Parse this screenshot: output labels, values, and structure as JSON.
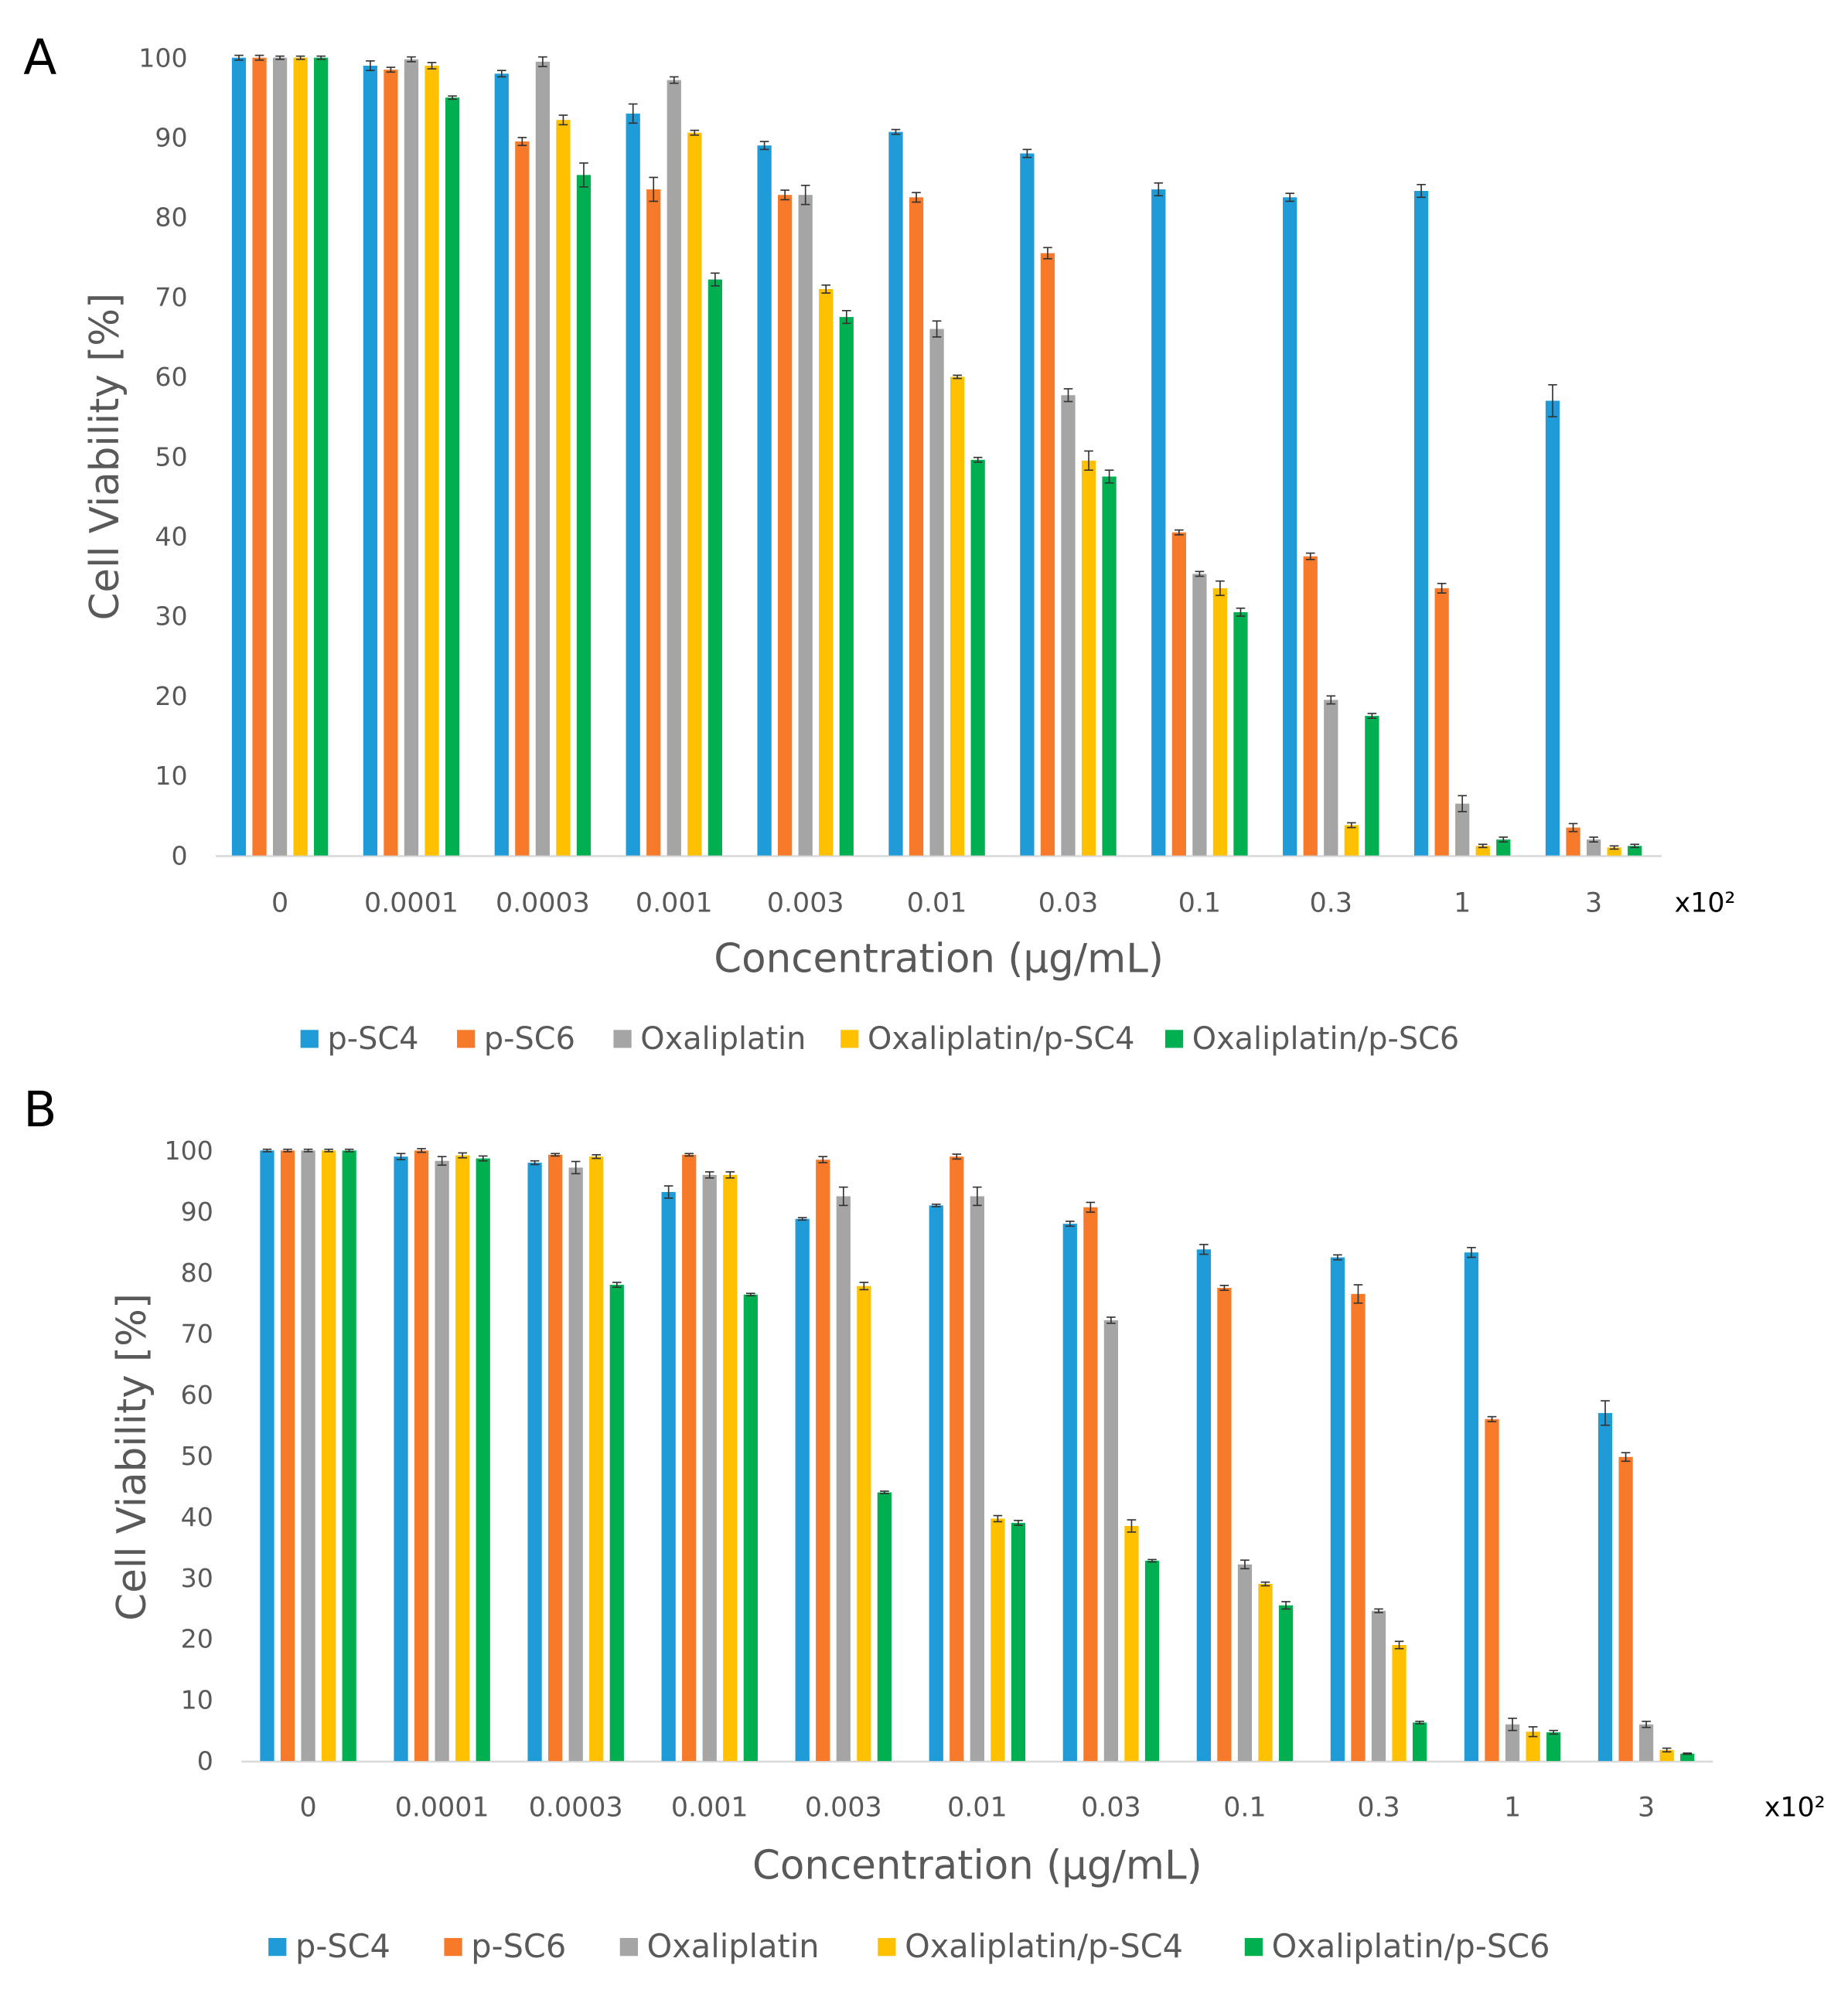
{
  "chart_data": [
    {
      "type": "bar",
      "panel_label": "A",
      "title": "",
      "xlabel": "Concentration (µg/mL)",
      "ylabel": "Cell Viability [%]",
      "x_multiplier": "x10²",
      "ylim": [
        0,
        100
      ],
      "yticks": [
        0,
        10,
        20,
        30,
        40,
        50,
        60,
        70,
        80,
        90,
        100
      ],
      "grid": false,
      "legend_position": "bottom",
      "categories": [
        "0",
        "0.0001",
        "0.0003",
        "0.001",
        "0.003",
        "0.01",
        "0.03",
        "0.1",
        "0.3",
        "1",
        "3"
      ],
      "series": [
        {
          "name": "p-SC4",
          "color": "#1F9BD7",
          "values": [
            100,
            99,
            98,
            93,
            89,
            90.7,
            88,
            83.5,
            82.5,
            83.3,
            57
          ],
          "errors": [
            0.3,
            0.6,
            0.4,
            1.2,
            0.5,
            0.3,
            0.5,
            0.8,
            0.5,
            0.8,
            2
          ]
        },
        {
          "name": "p-SC6",
          "color": "#F7792A",
          "values": [
            100,
            98.5,
            89.5,
            83.5,
            82.8,
            82.5,
            75.5,
            40.5,
            37.5,
            33.5,
            3.5
          ],
          "errors": [
            0.3,
            0.3,
            0.5,
            1.5,
            0.6,
            0.6,
            0.7,
            0.3,
            0.4,
            0.6,
            0.5
          ]
        },
        {
          "name": "Oxaliplatin",
          "color": "#A5A5A5",
          "values": [
            100,
            99.8,
            99.5,
            97.2,
            82.8,
            66,
            57.7,
            35.3,
            19.5,
            6.5,
            2
          ],
          "errors": [
            0.2,
            0.3,
            0.6,
            0.4,
            1.2,
            1,
            0.8,
            0.3,
            0.5,
            1,
            0.3
          ]
        },
        {
          "name": "Oxaliplatin/p-SC4",
          "color": "#FFC000",
          "values": [
            100,
            99,
            92.2,
            90.6,
            71,
            60,
            49.5,
            33.5,
            3.8,
            1.2,
            1
          ],
          "errors": [
            0.2,
            0.4,
            0.6,
            0.3,
            0.5,
            0.2,
            1.2,
            0.9,
            0.3,
            0.2,
            0.2
          ]
        },
        {
          "name": "Oxaliplatin/p-SC6",
          "color": "#00B050",
          "values": [
            100,
            95,
            85.3,
            72.2,
            67.5,
            49.6,
            47.5,
            30.5,
            17.5,
            2,
            1.2
          ],
          "errors": [
            0.2,
            0.2,
            1.5,
            0.8,
            0.8,
            0.3,
            0.8,
            0.5,
            0.3,
            0.3,
            0.2
          ]
        }
      ]
    },
    {
      "type": "bar",
      "panel_label": "B",
      "title": "",
      "xlabel": "Concentration (µg/mL)",
      "ylabel": "Cell Viability [%]",
      "x_multiplier": "x10²",
      "ylim": [
        0,
        100
      ],
      "yticks": [
        0,
        10,
        20,
        30,
        40,
        50,
        60,
        70,
        80,
        90,
        100
      ],
      "grid": false,
      "legend_position": "bottom",
      "categories": [
        "0",
        "0.0001",
        "0.0003",
        "0.001",
        "0.003",
        "0.01",
        "0.03",
        "0.1",
        "0.3",
        "1",
        "3"
      ],
      "series": [
        {
          "name": "p-SC4",
          "color": "#1F9BD7",
          "values": [
            100,
            99,
            98,
            93.2,
            88.8,
            91,
            88,
            83.8,
            82.5,
            83.3,
            57
          ],
          "errors": [
            0.2,
            0.5,
            0.3,
            1,
            0.2,
            0.2,
            0.4,
            0.8,
            0.4,
            0.8,
            2
          ]
        },
        {
          "name": "p-SC6",
          "color": "#F7792A",
          "values": [
            100,
            100,
            99.3,
            99.3,
            98.5,
            99,
            90.7,
            77.5,
            76.5,
            56,
            49.8
          ],
          "errors": [
            0.2,
            0.3,
            0.2,
            0.2,
            0.5,
            0.4,
            0.8,
            0.4,
            1.5,
            0.4,
            0.7
          ]
        },
        {
          "name": "Oxaliplatin",
          "color": "#A5A5A5",
          "values": [
            100,
            98.3,
            97.2,
            96,
            92.5,
            92.5,
            72.2,
            32.2,
            24.6,
            6,
            6
          ],
          "errors": [
            0.2,
            0.7,
            1,
            0.5,
            1.5,
            1.5,
            0.5,
            0.7,
            0.3,
            1,
            0.5
          ]
        },
        {
          "name": "Oxaliplatin/p-SC4",
          "color": "#FFC000",
          "values": [
            100,
            99.2,
            99,
            96,
            77.8,
            39.7,
            38.5,
            29,
            19,
            4.8,
            1.8
          ],
          "errors": [
            0.2,
            0.4,
            0.3,
            0.5,
            0.6,
            0.5,
            1,
            0.3,
            0.6,
            0.8,
            0.3
          ]
        },
        {
          "name": "Oxaliplatin/p-SC6",
          "color": "#00B050",
          "values": [
            100,
            98.7,
            78,
            76.4,
            44,
            39,
            32.8,
            25.5,
            6.3,
            4.7,
            1.2
          ],
          "errors": [
            0.2,
            0.4,
            0.4,
            0.2,
            0.2,
            0.4,
            0.2,
            0.6,
            0.2,
            0.3,
            0.1
          ]
        }
      ]
    }
  ]
}
